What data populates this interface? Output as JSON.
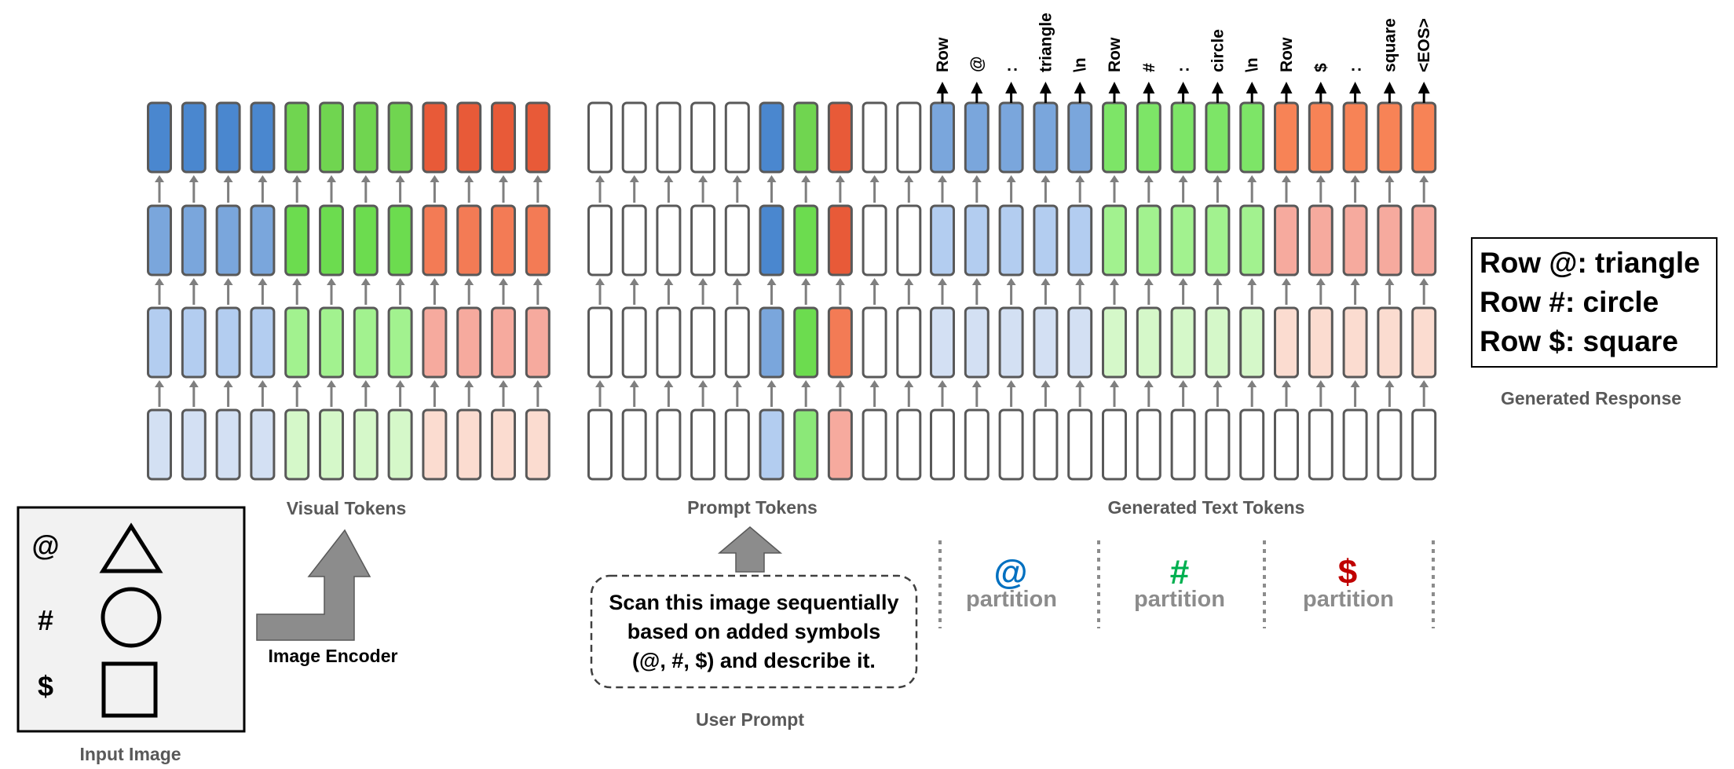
{
  "colors": {
    "visual_columns": [
      [
        "#d3e0f3",
        "#b3cdf0",
        "#7aa6dc",
        "#4a87cf"
      ],
      [
        "#d3e0f3",
        "#b3cdf0",
        "#7aa6dc",
        "#4a87cf"
      ],
      [
        "#d3e0f3",
        "#b3cdf0",
        "#7aa6dc",
        "#4a87cf"
      ],
      [
        "#d3e0f3",
        "#b3cdf0",
        "#7aa6dc",
        "#4a87cf"
      ],
      [
        "#d5f8c9",
        "#a2f28f",
        "#6cdc4f",
        "#70d550"
      ],
      [
        "#d5f8c9",
        "#a2f28f",
        "#6cdc4f",
        "#70d550"
      ],
      [
        "#d5f8c9",
        "#a2f28f",
        "#6cdc4f",
        "#70d550"
      ],
      [
        "#d5f8c9",
        "#a2f28f",
        "#6cdc4f",
        "#70d550"
      ],
      [
        "#fbdcd0",
        "#f6aa9e",
        "#f37b55",
        "#e85a38"
      ],
      [
        "#fbdcd0",
        "#f6aa9e",
        "#f37b55",
        "#e85a38"
      ],
      [
        "#fbdcd0",
        "#f6aa9e",
        "#f37b55",
        "#e85a38"
      ],
      [
        "#fbdcd0",
        "#f6aa9e",
        "#f37b55",
        "#e85a38"
      ]
    ],
    "prompt_columns": [
      [
        "#ffffff",
        "#ffffff",
        "#ffffff",
        "#ffffff"
      ],
      [
        "#ffffff",
        "#ffffff",
        "#ffffff",
        "#ffffff"
      ],
      [
        "#ffffff",
        "#ffffff",
        "#ffffff",
        "#ffffff"
      ],
      [
        "#ffffff",
        "#ffffff",
        "#ffffff",
        "#ffffff"
      ],
      [
        "#ffffff",
        "#ffffff",
        "#ffffff",
        "#ffffff"
      ],
      [
        "#b3cdf0",
        "#7aa6dc",
        "#4a87cf",
        "#4a87cf"
      ],
      [
        "#8be878",
        "#6cdc4f",
        "#6cdc4f",
        "#70d550"
      ],
      [
        "#f6aa9e",
        "#f37b55",
        "#e85a38",
        "#e85a38"
      ],
      [
        "#ffffff",
        "#ffffff",
        "#ffffff",
        "#ffffff"
      ],
      [
        "#ffffff",
        "#ffffff",
        "#ffffff",
        "#ffffff"
      ]
    ],
    "generated_blue": [
      "#ffffff",
      "#d3e0f3",
      "#b3cdf0",
      "#7aa6dc"
    ],
    "generated_green": [
      "#ffffff",
      "#d5f8c9",
      "#a2f28f",
      "#7de567"
    ],
    "generated_red": [
      "#ffffff",
      "#fbdcd0",
      "#f6aa9e",
      "#f78356"
    ],
    "at_color": "#0070c0",
    "hash_color": "#00b050",
    "dollar_color": "#c00000"
  },
  "generated_tokens": [
    "Row",
    "@",
    ":",
    "triangle",
    "\\n",
    "Row",
    "#",
    ":",
    "circle",
    "\\n",
    "Row",
    "$",
    ":",
    "square",
    "<EOS>"
  ],
  "labels": {
    "visual_tokens": "Visual Tokens",
    "prompt_tokens": "Prompt Tokens",
    "generated_text_tokens": "Generated Text Tokens",
    "input_image": "Input Image",
    "image_encoder": "Image Encoder",
    "user_prompt": "User Prompt",
    "generated_response": "Generated Response"
  },
  "input_image": {
    "symbols": [
      "@",
      "#",
      "$"
    ]
  },
  "prompt_text": {
    "line1": "Scan this image sequentially",
    "line2": "based on added symbols",
    "line3": "(@, #, $) and describe it."
  },
  "partitions": [
    {
      "symbol": "@",
      "word": "partition"
    },
    {
      "symbol": "#",
      "word": "partition"
    },
    {
      "symbol": "$",
      "word": "partition"
    }
  ],
  "response": {
    "line1": "Row @: triangle",
    "line2": "Row #: circle",
    "line3": "Row $: square"
  }
}
